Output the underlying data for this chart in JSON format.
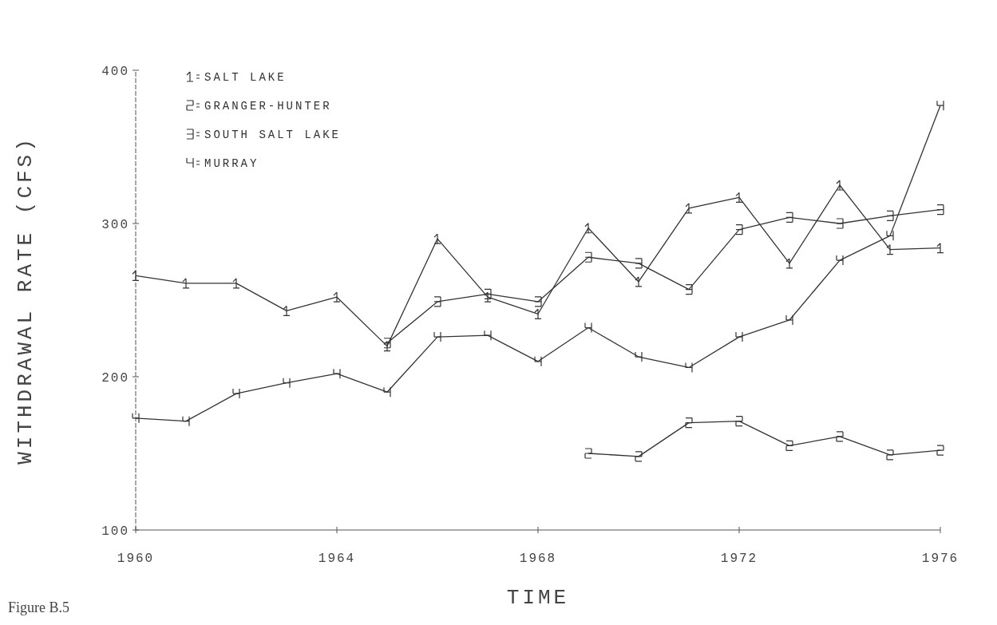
{
  "chart_data": {
    "type": "line",
    "xlabel": "TIME",
    "ylabel": "WITHDRAWAL RATE (CFS)",
    "annotations": [
      "Figure B.5"
    ],
    "xlim": [
      1960,
      1976
    ],
    "xticks": [
      1960,
      1964,
      1968,
      1972,
      1976
    ],
    "ylim": [
      100,
      400
    ],
    "yticks": [
      100,
      200,
      300,
      400
    ],
    "legend": "top left",
    "grid": false,
    "marker": "cross",
    "line_style": "solid",
    "series": [
      {
        "name": "SALT LAKE",
        "color": "#333333",
        "x": [
          1960,
          1961,
          1962,
          1963,
          1964,
          1965,
          1966,
          1967,
          1968,
          1969,
          1970,
          1971,
          1972,
          1973,
          1974,
          1975,
          1976
        ],
        "values": [
          266,
          261,
          261,
          243,
          252,
          220,
          290,
          252,
          241,
          297,
          262,
          310,
          317,
          274,
          325,
          283,
          284
        ]
      },
      {
        "name": "GRANGER-HUNTER",
        "color": "#333333",
        "x": [
          1969,
          1970,
          1971,
          1972,
          1973,
          1974,
          1975,
          1976
        ],
        "values": [
          150,
          148,
          170,
          171,
          155,
          161,
          149,
          152
        ]
      },
      {
        "name": "SOUTH SALT LAKE",
        "color": "#333333",
        "x": [
          1965,
          1966,
          1967,
          1968,
          1969,
          1970,
          1971,
          1972,
          1973,
          1974,
          1975,
          1976
        ],
        "values": [
          222,
          249,
          254,
          249,
          278,
          274,
          257,
          296,
          304,
          300,
          305,
          309
        ]
      },
      {
        "name": "MURRAY",
        "color": "#333333",
        "x": [
          1960,
          1961,
          1962,
          1963,
          1964,
          1965,
          1966,
          1967,
          1968,
          1969,
          1970,
          1971,
          1972,
          1973,
          1974,
          1975,
          1976
        ],
        "values": [
          173,
          171,
          189,
          196,
          202,
          190,
          226,
          227,
          210,
          232,
          213,
          206,
          226,
          237,
          276,
          292,
          377
        ]
      }
    ]
  }
}
